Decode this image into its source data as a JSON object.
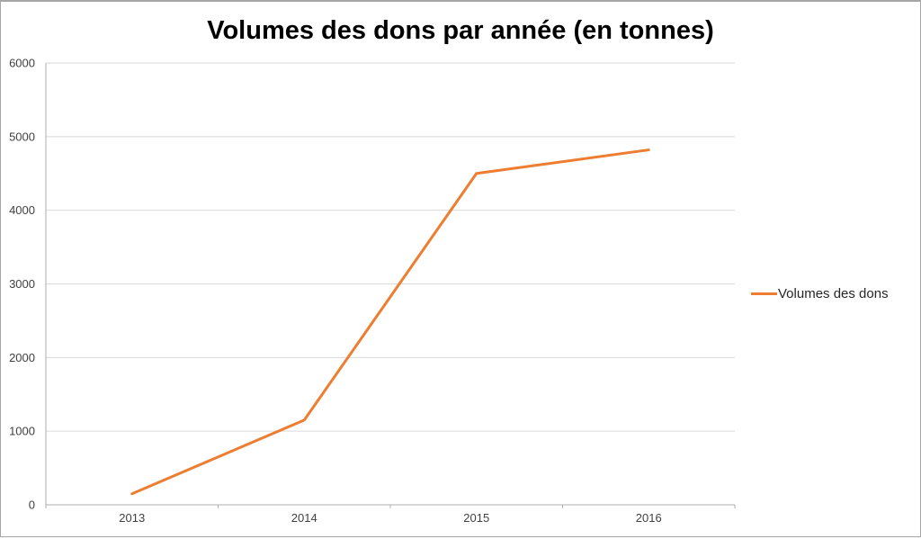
{
  "chart_data": {
    "type": "line",
    "title": "Volumes des dons par année (en tonnes)",
    "categories": [
      "2013",
      "2014",
      "2015",
      "2016"
    ],
    "series": [
      {
        "name": "Volumes des dons",
        "color": "#ED7D31",
        "values": [
          150,
          1150,
          4500,
          4820
        ]
      }
    ],
    "ylim": [
      0,
      6000
    ],
    "ytick_step": 1000,
    "ytick_labels": [
      "0",
      "1000",
      "2000",
      "3000",
      "4000",
      "5000",
      "6000"
    ],
    "grid": true,
    "legend_position": "right",
    "xlabel": "",
    "ylabel": ""
  },
  "style": {
    "background": "#FFFFFF",
    "chart_border_color": "#A6A6A6",
    "gridline_color": "#D9D9D9",
    "axis_color": "#ACACAC",
    "tick_label_color": "#404040",
    "title_color": "#000000",
    "legend_text_color": "#262626"
  }
}
